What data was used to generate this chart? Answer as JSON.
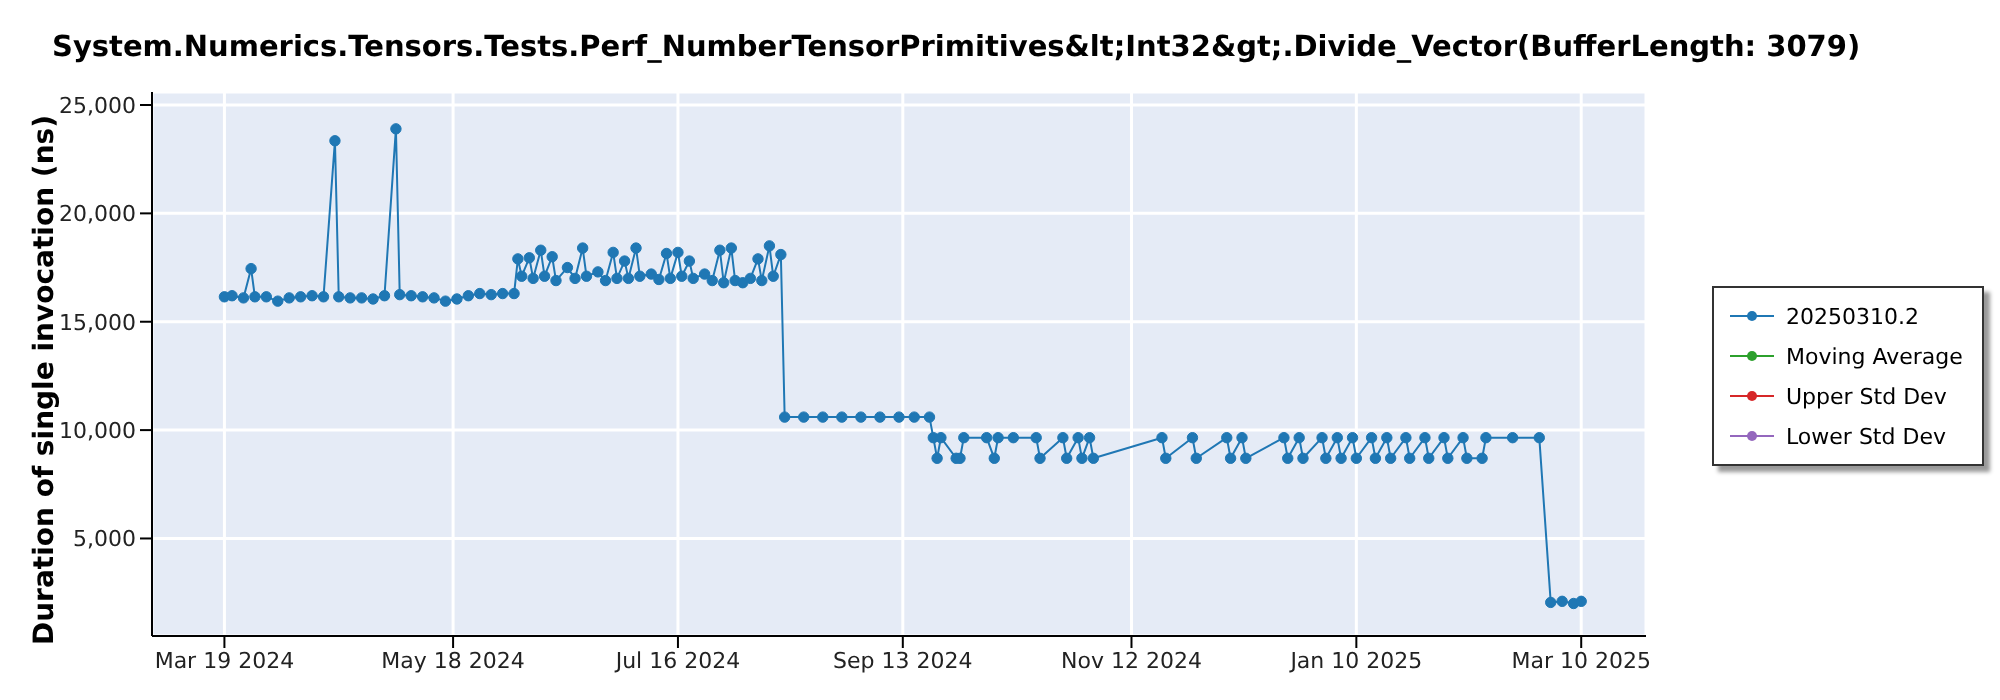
{
  "chart_data": {
    "type": "line",
    "title": "System.Numerics.Tensors.Tests.Perf_NumberTensorPrimitives&lt;Int32&gt;.Divide_Vector(BufferLength: 3079)",
    "ylabel": "Duration of single invocation (ns)",
    "x": [
      "2024-03-19",
      "2024-03-21",
      "2024-03-24",
      "2024-03-26",
      "2024-03-27",
      "2024-03-30",
      "2024-04-02",
      "2024-04-05",
      "2024-04-08",
      "2024-04-11",
      "2024-04-14",
      "2024-04-17",
      "2024-04-18",
      "2024-04-21",
      "2024-04-24",
      "2024-04-27",
      "2024-04-30",
      "2024-05-03",
      "2024-05-04",
      "2024-05-07",
      "2024-05-10",
      "2024-05-13",
      "2024-05-16",
      "2024-05-19",
      "2024-05-22",
      "2024-05-25",
      "2024-05-28",
      "2024-05-31",
      "2024-06-03",
      "2024-06-04",
      "2024-06-05",
      "2024-06-07",
      "2024-06-08",
      "2024-06-10",
      "2024-06-11",
      "2024-06-13",
      "2024-06-14",
      "2024-06-17",
      "2024-06-19",
      "2024-06-21",
      "2024-06-22",
      "2024-06-25",
      "2024-06-27",
      "2024-06-29",
      "2024-06-30",
      "2024-07-02",
      "2024-07-03",
      "2024-07-05",
      "2024-07-06",
      "2024-07-09",
      "2024-07-11",
      "2024-07-13",
      "2024-07-14",
      "2024-07-16",
      "2024-07-17",
      "2024-07-19",
      "2024-07-20",
      "2024-07-23",
      "2024-07-25",
      "2024-07-27",
      "2024-07-28",
      "2024-07-30",
      "2024-07-31",
      "2024-08-02",
      "2024-08-04",
      "2024-08-06",
      "2024-08-07",
      "2024-08-09",
      "2024-08-10",
      "2024-08-12",
      "2024-08-13",
      "2024-08-18",
      "2024-08-23",
      "2024-08-28",
      "2024-09-02",
      "2024-09-07",
      "2024-09-12",
      "2024-09-16",
      "2024-09-20",
      "2024-09-21",
      "2024-09-22",
      "2024-09-23",
      "2024-09-27",
      "2024-09-28",
      "2024-09-29",
      "2024-10-05",
      "2024-10-07",
      "2024-10-08",
      "2024-10-12",
      "2024-10-18",
      "2024-10-19",
      "2024-10-25",
      "2024-10-26",
      "2024-10-29",
      "2024-10-30",
      "2024-11-01",
      "2024-11-02",
      "2024-11-20",
      "2024-11-21",
      "2024-11-28",
      "2024-11-29",
      "2024-12-07",
      "2024-12-08",
      "2024-12-11",
      "2024-12-12",
      "2024-12-22",
      "2024-12-23",
      "2024-12-26",
      "2024-12-27",
      "2025-01-01",
      "2025-01-02",
      "2025-01-05",
      "2025-01-06",
      "2025-01-09",
      "2025-01-10",
      "2025-01-14",
      "2025-01-15",
      "2025-01-18",
      "2025-01-19",
      "2025-01-23",
      "2025-01-24",
      "2025-01-28",
      "2025-01-29",
      "2025-02-02",
      "2025-02-03",
      "2025-02-07",
      "2025-02-08",
      "2025-02-12",
      "2025-02-13",
      "2025-02-20",
      "2025-02-27",
      "2025-03-02",
      "2025-03-05",
      "2025-03-08",
      "2025-03-10"
    ],
    "series": [
      {
        "name": "20250310.2",
        "color": "#1f77b4",
        "values": [
          16150,
          16200,
          16100,
          17450,
          16150,
          16150,
          15950,
          16100,
          16150,
          16200,
          16150,
          23350,
          16150,
          16100,
          16100,
          16050,
          16200,
          23900,
          16250,
          16200,
          16150,
          16100,
          15950,
          16050,
          16200,
          16300,
          16250,
          16300,
          16300,
          17900,
          17100,
          17950,
          17000,
          18300,
          17100,
          18000,
          16900,
          17500,
          17000,
          18400,
          17100,
          17300,
          16900,
          18200,
          17000,
          17800,
          17000,
          18400,
          17100,
          17200,
          16950,
          18150,
          17000,
          18200,
          17100,
          17800,
          17000,
          17200,
          16900,
          18300,
          16800,
          18400,
          16900,
          16800,
          17000,
          17900,
          16900,
          18500,
          17100,
          18100,
          10600,
          10600,
          10600,
          10600,
          10600,
          10600,
          10600,
          10600,
          10600,
          9650,
          8700,
          9650,
          8700,
          8700,
          9650,
          9650,
          8700,
          9650,
          9650,
          9650,
          8700,
          9650,
          8700,
          9650,
          8700,
          9650,
          8700,
          9650,
          8700,
          9650,
          8700,
          9650,
          8700,
          9650,
          8700,
          9650,
          8700,
          9650,
          8700,
          9650,
          8700,
          9650,
          8700,
          9650,
          8700,
          9650,
          8700,
          9650,
          8700,
          9650,
          8700,
          9650,
          8700,
          9650,
          8700,
          9650,
          8700,
          8700,
          9650,
          9650,
          9650,
          2050,
          2100,
          2000,
          2100
        ]
      },
      {
        "name": "Moving Average",
        "color": "#2ca02c",
        "values": [
          null,
          null,
          null,
          null,
          null,
          null,
          null,
          null,
          null,
          null,
          null,
          null,
          null,
          null,
          null,
          null,
          null,
          null,
          null,
          null,
          null,
          null,
          null,
          null,
          null,
          null,
          null,
          null,
          null,
          null,
          null,
          null,
          null,
          null,
          null,
          null,
          null,
          null,
          null,
          null,
          null,
          null,
          null,
          null,
          null,
          null,
          null,
          null,
          null,
          null,
          null,
          null,
          null,
          null,
          null,
          null,
          null,
          null,
          null,
          null,
          null,
          null,
          null,
          null,
          null,
          null,
          null,
          null,
          null,
          null,
          null,
          null,
          null,
          null,
          null,
          null,
          null,
          null,
          null,
          null,
          null,
          null,
          null,
          null,
          null,
          null,
          null,
          null,
          null,
          null,
          null,
          null,
          null,
          null,
          null,
          null,
          null,
          null,
          null,
          null,
          null,
          null,
          null,
          null,
          null,
          null,
          null,
          null,
          null,
          null,
          null,
          null,
          null,
          null,
          null,
          null,
          null,
          null,
          null,
          null,
          null,
          null,
          null,
          null,
          null,
          null,
          null,
          null,
          null,
          null,
          null,
          null,
          null,
          null,
          null
        ]
      },
      {
        "name": "Upper Std Dev",
        "color": "#d62728",
        "values": [
          null,
          null,
          null,
          null,
          null,
          null,
          null,
          null,
          null,
          null,
          null,
          null,
          null,
          null,
          null,
          null,
          null,
          null,
          null,
          null,
          null,
          null,
          null,
          null,
          null,
          null,
          null,
          null,
          null,
          null,
          null,
          null,
          null,
          null,
          null,
          null,
          null,
          null,
          null,
          null,
          null,
          null,
          null,
          null,
          null,
          null,
          null,
          null,
          null,
          null,
          null,
          null,
          null,
          null,
          null,
          null,
          null,
          null,
          null,
          null,
          null,
          null,
          null,
          null,
          null,
          null,
          null,
          null,
          null,
          null,
          null,
          null,
          null,
          null,
          null,
          null,
          null,
          null,
          null,
          null,
          null,
          null,
          null,
          null,
          null,
          null,
          null,
          null,
          null,
          null,
          null,
          null,
          null,
          null,
          null,
          null,
          null,
          null,
          null,
          null,
          null,
          null,
          null,
          null,
          null,
          null,
          null,
          null,
          null,
          null,
          null,
          null,
          null,
          null,
          null,
          null,
          null,
          null,
          null,
          null,
          null,
          null,
          null,
          null,
          null,
          null,
          null,
          null,
          null,
          null,
          null,
          null,
          null,
          null,
          null
        ]
      },
      {
        "name": "Lower Std Dev",
        "color": "#9467bd",
        "values": [
          null,
          null,
          null,
          null,
          null,
          null,
          null,
          null,
          null,
          null,
          null,
          null,
          null,
          null,
          null,
          null,
          null,
          null,
          null,
          null,
          null,
          null,
          null,
          null,
          null,
          null,
          null,
          null,
          null,
          null,
          null,
          null,
          null,
          null,
          null,
          null,
          null,
          null,
          null,
          null,
          null,
          null,
          null,
          null,
          null,
          null,
          null,
          null,
          null,
          null,
          null,
          null,
          null,
          null,
          null,
          null,
          null,
          null,
          null,
          null,
          null,
          null,
          null,
          null,
          null,
          null,
          null,
          null,
          null,
          null,
          null,
          null,
          null,
          null,
          null,
          null,
          null,
          null,
          null,
          null,
          null,
          null,
          null,
          null,
          null,
          null,
          null,
          null,
          null,
          null,
          null,
          null,
          null,
          null,
          null,
          null,
          null,
          null,
          null,
          null,
          null,
          null,
          null,
          null,
          null,
          null,
          null,
          null,
          null,
          null,
          null,
          null,
          null,
          null,
          null,
          null,
          null,
          null,
          null,
          null,
          null,
          null,
          null,
          null,
          null,
          null,
          null,
          null,
          null,
          null,
          null,
          null,
          null,
          null,
          null
        ]
      }
    ],
    "xlim": [
      "2024-02-29",
      "2025-03-27"
    ],
    "xticks": [
      {
        "value": "2024-03-19",
        "label": "Mar 19 2024"
      },
      {
        "value": "2024-05-18",
        "label": "May 18 2024"
      },
      {
        "value": "2024-07-16",
        "label": "Jul 16 2024"
      },
      {
        "value": "2024-09-13",
        "label": "Sep 13 2024"
      },
      {
        "value": "2024-11-12",
        "label": "Nov 12 2024"
      },
      {
        "value": "2025-01-10",
        "label": "Jan 10 2025"
      },
      {
        "value": "2025-03-10",
        "label": "Mar 10 2025"
      }
    ],
    "ylim": [
      500,
      25600
    ],
    "yticks": [
      {
        "value": 5000,
        "label": "5,000"
      },
      {
        "value": 10000,
        "label": "10,000"
      },
      {
        "value": 15000,
        "label": "15,000"
      },
      {
        "value": 20000,
        "label": "20,000"
      },
      {
        "value": 25000,
        "label": "25,000"
      }
    ],
    "grid": true,
    "legend": "right",
    "marker": "circle",
    "line_style": "solid"
  }
}
